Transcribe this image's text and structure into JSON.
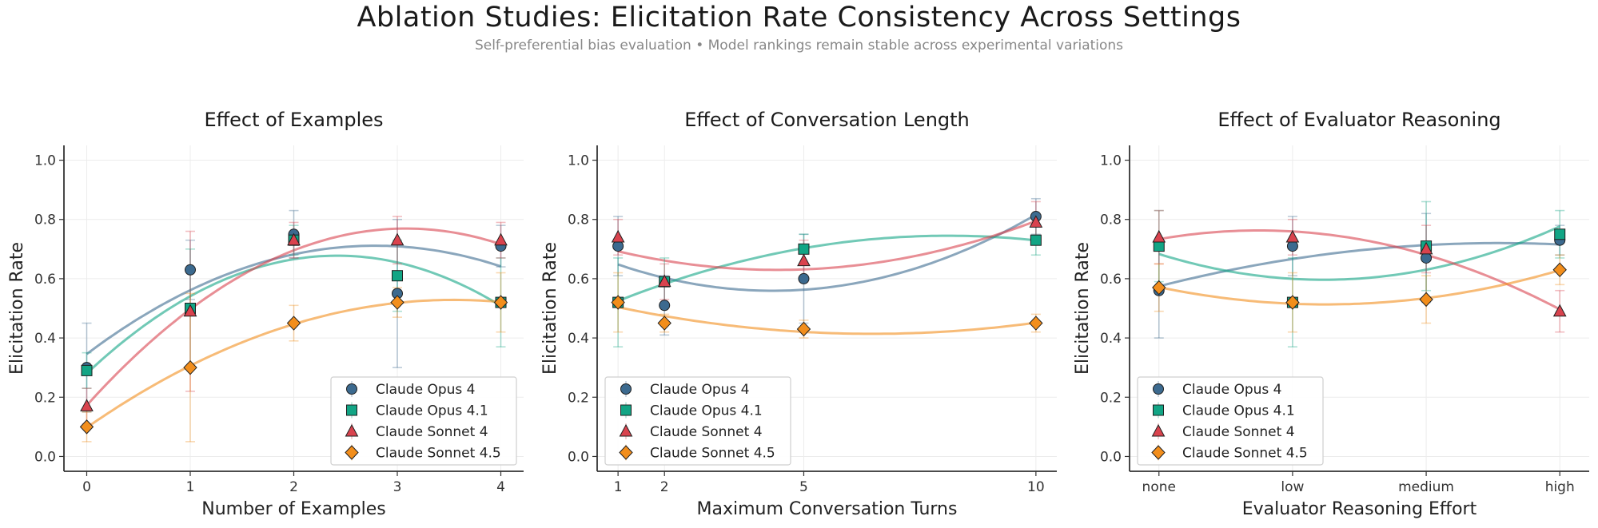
{
  "figure": {
    "title": "Ablation Studies: Elicitation Rate Consistency Across Settings",
    "subtitle": "Self-preferential bias evaluation • Model rankings remain stable across experimental variations"
  },
  "colors": {
    "Claude Opus 4": "#3c6a8f",
    "Claude Opus 4.1": "#12a585",
    "Claude Sonnet 4": "#d9434e",
    "Claude Sonnet 4.5": "#f28e1c"
  },
  "markers": {
    "Claude Opus 4": "circle",
    "Claude Opus 4.1": "square",
    "Claude Sonnet 4": "triangle",
    "Claude Sonnet 4.5": "diamond"
  },
  "chart_data": [
    {
      "type": "scatter",
      "title": "Effect of Examples",
      "xlabel": "Number of Examples",
      "ylabel": "Elicitation Rate",
      "x": [
        0,
        1,
        2,
        3,
        4
      ],
      "xticks": [
        "0",
        "1",
        "2",
        "3",
        "4"
      ],
      "xlim": [
        -0.22,
        4.22
      ],
      "ylim": [
        -0.05,
        1.05
      ],
      "yticks": [
        "0.0",
        "0.2",
        "0.4",
        "0.6",
        "0.8",
        "1.0"
      ],
      "legend": "lower-right",
      "trend": "quadratic fit",
      "series": [
        {
          "name": "Claude Opus 4",
          "values": [
            0.3,
            0.63,
            0.75,
            0.55,
            0.71
          ],
          "err": [
            0.15,
            0.1,
            0.08,
            0.25,
            0.07
          ]
        },
        {
          "name": "Claude Opus 4.1",
          "values": [
            0.29,
            0.5,
            0.73,
            0.61,
            0.52
          ],
          "err": [
            0.06,
            0.2,
            0.05,
            0.12,
            0.15
          ]
        },
        {
          "name": "Claude Sonnet 4",
          "values": [
            0.17,
            0.49,
            0.73,
            0.73,
            0.73
          ],
          "err": [
            0.06,
            0.27,
            0.06,
            0.08,
            0.06
          ]
        },
        {
          "name": "Claude Sonnet 4.5",
          "values": [
            0.1,
            0.3,
            0.45,
            0.52,
            0.52
          ],
          "err": [
            0.05,
            0.25,
            0.06,
            0.05,
            0.1
          ]
        }
      ]
    },
    {
      "type": "scatter",
      "title": "Effect of Conversation Length",
      "xlabel": "Maximum Conversation Turns",
      "ylabel": "Elicitation Rate",
      "x": [
        1,
        2,
        5,
        10
      ],
      "xticks": [
        "1",
        "2",
        "5",
        "10"
      ],
      "xlim": [
        0.55,
        10.45
      ],
      "ylim": [
        -0.05,
        1.05
      ],
      "yticks": [
        "0.0",
        "0.2",
        "0.4",
        "0.6",
        "0.8",
        "1.0"
      ],
      "legend": "lower-left",
      "trend": "quadratic fit",
      "series": [
        {
          "name": "Claude Opus 4",
          "values": [
            0.71,
            0.51,
            0.6,
            0.81
          ],
          "err": [
            0.1,
            0.1,
            0.15,
            0.06
          ]
        },
        {
          "name": "Claude Opus 4.1",
          "values": [
            0.52,
            0.59,
            0.7,
            0.73
          ],
          "err": [
            0.15,
            0.08,
            0.05,
            0.05
          ]
        },
        {
          "name": "Claude Sonnet 4",
          "values": [
            0.74,
            0.59,
            0.66,
            0.79
          ],
          "err": [
            0.06,
            0.06,
            0.07,
            0.07
          ]
        },
        {
          "name": "Claude Sonnet 4.5",
          "values": [
            0.52,
            0.45,
            0.43,
            0.45
          ],
          "err": [
            0.1,
            0.03,
            0.03,
            0.03
          ]
        }
      ]
    },
    {
      "type": "scatter",
      "title": "Effect of Evaluator Reasoning",
      "xlabel": "Evaluator Reasoning Effort",
      "ylabel": "Elicitation Rate",
      "x": [
        0,
        1,
        2,
        3
      ],
      "xticks": [
        "none",
        "low",
        "medium",
        "high"
      ],
      "xlim": [
        -0.22,
        3.22
      ],
      "ylim": [
        -0.05,
        1.05
      ],
      "yticks": [
        "0.0",
        "0.2",
        "0.4",
        "0.6",
        "0.8",
        "1.0"
      ],
      "legend": "lower-left",
      "trend": "quadratic fit",
      "series": [
        {
          "name": "Claude Opus 4",
          "values": [
            0.56,
            0.71,
            0.67,
            0.73
          ],
          "err": [
            0.16,
            0.1,
            0.15,
            0.05
          ]
        },
        {
          "name": "Claude Opus 4.1",
          "values": [
            0.71,
            0.52,
            0.71,
            0.75
          ],
          "err": [
            0.12,
            0.15,
            0.15,
            0.08
          ]
        },
        {
          "name": "Claude Sonnet 4",
          "values": [
            0.74,
            0.74,
            0.7,
            0.49
          ],
          "err": [
            0.09,
            0.06,
            0.08,
            0.07
          ]
        },
        {
          "name": "Claude Sonnet 4.5",
          "values": [
            0.57,
            0.52,
            0.53,
            0.63
          ],
          "err": [
            0.08,
            0.1,
            0.08,
            0.05
          ]
        }
      ]
    }
  ]
}
